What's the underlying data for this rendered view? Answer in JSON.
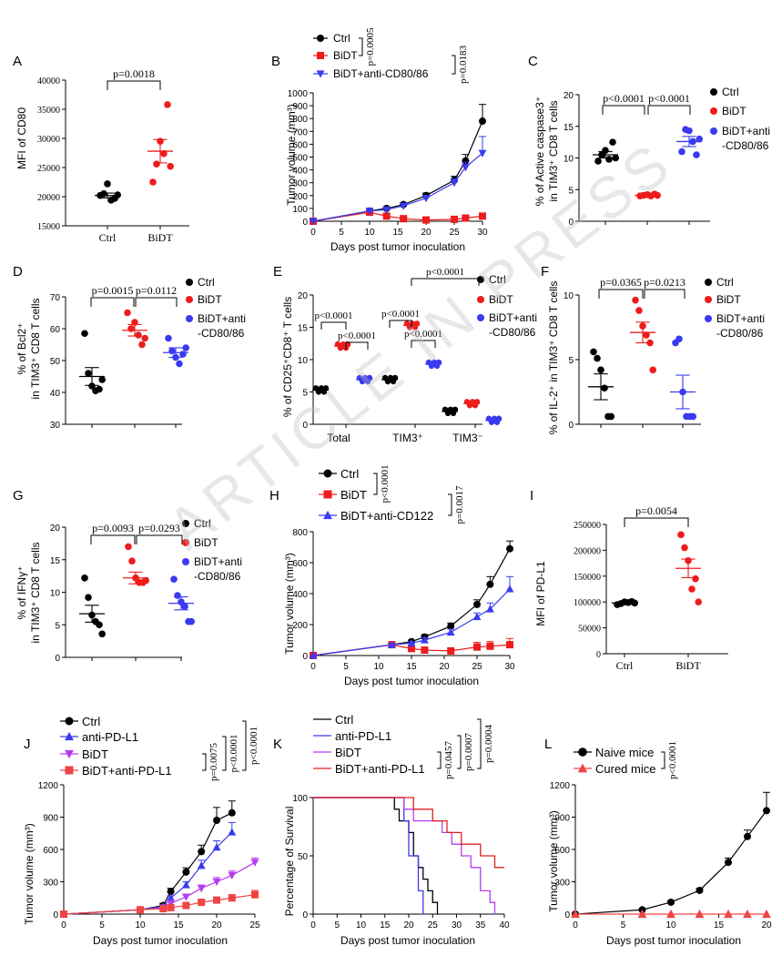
{
  "watermark": "ARTICLE IN PRESS",
  "colors": {
    "black": "#000000",
    "red": "#ee1c1c",
    "blue": "#3a3af0",
    "purple": "#b63cf0",
    "lightred": "#ef4444"
  },
  "chart_data": [
    {
      "panel": "A",
      "type": "scatter",
      "ylabel": "MFI of CD80",
      "ylim": [
        15000,
        40000
      ],
      "yticks": [
        15000,
        20000,
        25000,
        30000,
        35000,
        40000
      ],
      "categories": [
        "Ctrl",
        "BiDT"
      ],
      "points": [
        [
          20200,
          20500,
          22200,
          19400,
          19700,
          20300
        ],
        [
          22500,
          25600,
          29500,
          27400,
          35800,
          25200
        ]
      ],
      "means": [
        20200,
        27800
      ],
      "sems": [
        420,
        2000
      ],
      "annotations": [
        "p=0.0018"
      ]
    },
    {
      "panel": "B",
      "type": "line",
      "xlabel": "Days post tumor inoculation",
      "ylabel": "Tumor volume (mm³)",
      "xlim": [
        0,
        30
      ],
      "ylim": [
        0,
        1000
      ],
      "xticks": [
        0,
        5,
        10,
        15,
        20,
        25,
        30
      ],
      "yticks": [
        0,
        100,
        200,
        300,
        400,
        500,
        600,
        700,
        800,
        900,
        1000
      ],
      "series": [
        {
          "name": "Ctrl",
          "x": [
            0,
            10,
            13,
            16,
            20,
            25,
            27,
            30
          ],
          "y": [
            0,
            80,
            100,
            130,
            200,
            320,
            470,
            780
          ],
          "err": [
            0,
            10,
            12,
            15,
            20,
            30,
            50,
            130
          ]
        },
        {
          "name": "BiDT",
          "x": [
            0,
            10,
            13,
            16,
            20,
            25,
            27,
            30
          ],
          "y": [
            0,
            70,
            40,
            20,
            10,
            15,
            25,
            40
          ],
          "err": [
            0,
            8,
            8,
            5,
            5,
            5,
            8,
            10
          ]
        },
        {
          "name": "BiDT+anti-CD80/86",
          "x": [
            0,
            10,
            13,
            16,
            20,
            25,
            27,
            30
          ],
          "y": [
            0,
            80,
            90,
            120,
            180,
            300,
            420,
            530
          ],
          "err": [
            0,
            10,
            10,
            15,
            20,
            30,
            40,
            130
          ]
        }
      ],
      "annotations": [
        "p=0.0005",
        "p=0.0183"
      ]
    },
    {
      "panel": "C",
      "type": "scatter",
      "ylabel1": "% of Active caspase3⁺",
      "ylabel2": "in TIM3⁺ CD8 T cells",
      "ylim": [
        0,
        20
      ],
      "yticks": [
        0,
        5,
        10,
        15,
        20
      ],
      "legend": [
        "Ctrl",
        "BiDT",
        "BiDT+anti",
        "-CD80/86"
      ],
      "points": [
        [
          9.5,
          10.5,
          11.2,
          9.8,
          12.5,
          10.0
        ],
        [
          4.0,
          4.1,
          4.2,
          4.0,
          4.3,
          4.1
        ],
        [
          11.0,
          14.5,
          14.3,
          12.6,
          10.5,
          13.0
        ]
      ],
      "means": [
        10.5,
        4.1,
        12.6
      ],
      "sems": [
        0.5,
        0.1,
        0.8
      ],
      "annotations": [
        "p<0.0001",
        "p<0.0001"
      ]
    },
    {
      "panel": "D",
      "type": "scatter",
      "ylabel1": "% of Bcl2⁺",
      "ylabel2": "in TIM3⁺ CD8 T cells",
      "ylim": [
        30,
        70
      ],
      "yticks": [
        30,
        40,
        50,
        60,
        70
      ],
      "legend": [
        "Ctrl",
        "BiDT",
        "BiDT+anti",
        "-CD80/86"
      ],
      "points": [
        [
          58.5,
          46,
          42,
          40.5,
          41,
          44
        ],
        [
          65,
          60,
          62,
          58,
          55,
          57
        ],
        [
          57,
          53,
          51,
          49,
          52,
          54
        ]
      ],
      "means": [
        45,
        59.5,
        52.5
      ],
      "sems": [
        2.8,
        1.8,
        1.5
      ],
      "annotations": [
        "p=0.0015",
        "p=0.0112"
      ]
    },
    {
      "panel": "E",
      "type": "scatter",
      "ylabel": "% of CD25⁺CD8⁺ T cells",
      "ylim": [
        0,
        20
      ],
      "yticks": [
        0,
        5,
        10,
        15,
        20
      ],
      "categories": [
        "Total",
        "TIM3⁺",
        "TIM3⁻"
      ],
      "legend": [
        "Ctrl",
        "BiDT",
        "BiDT+anti",
        "-CD80/86"
      ],
      "groups": [
        [
          5.3,
          12.1,
          6.9
        ],
        [
          6.9,
          15.3,
          9.3
        ],
        [
          2.0,
          3.2,
          0.6
        ]
      ],
      "annotations": [
        "p<0.0001",
        "p<0.0001",
        "p<0.0001",
        "p<0.0001",
        "p<0.0001"
      ]
    },
    {
      "panel": "F",
      "type": "scatter",
      "ylabel1": "% of IL-2⁺ in TIM3⁺ CD8 T cells",
      "ylim": [
        0,
        10
      ],
      "yticks": [
        0,
        5,
        10
      ],
      "legend": [
        "Ctrl",
        "BiDT",
        "BiDT+anti",
        "-CD80/86"
      ],
      "points": [
        [
          5.6,
          5.1,
          4.2,
          2.8,
          0.6,
          0.6
        ],
        [
          9.6,
          8.8,
          7.6,
          6.9,
          6.3,
          4.2
        ],
        [
          6.3,
          6.6,
          2.5,
          0.6,
          0.6,
          0.6
        ]
      ],
      "means": [
        2.9,
        7.1,
        2.5
      ],
      "sems": [
        1.0,
        0.8,
        1.3
      ],
      "annotations": [
        "p=0.0365",
        "p=0.0213"
      ]
    },
    {
      "panel": "G",
      "type": "scatter",
      "ylabel1": "% of IFNγ⁺",
      "ylabel2": "in TIM3⁺ CD8 T cells",
      "ylim": [
        0,
        20
      ],
      "yticks": [
        0,
        5,
        10,
        15,
        20
      ],
      "legend": [
        "Ctrl",
        "BiDT",
        "BiDT+anti",
        "-CD80/86"
      ],
      "points": [
        [
          12.2,
          9.2,
          6.5,
          5.5,
          5.0,
          3.6
        ],
        [
          17.0,
          14.8,
          12.2,
          11.5,
          11.5,
          11.8
        ],
        [
          12.0,
          9.5,
          8.5,
          7.8,
          5.5,
          5.5
        ]
      ],
      "means": [
        6.7,
        12.2,
        8.3
      ],
      "sems": [
        1.3,
        0.9,
        1.0
      ],
      "annotations": [
        "p=0.0093",
        "p=0.0293"
      ]
    },
    {
      "panel": "H",
      "type": "line",
      "xlabel": "Days post tumor inoculation",
      "ylabel": "Tumor volume (mm³)",
      "xlim": [
        0,
        30
      ],
      "ylim": [
        0,
        800
      ],
      "xticks": [
        0,
        5,
        10,
        15,
        20,
        25,
        30
      ],
      "yticks": [
        0,
        200,
        400,
        600,
        800
      ],
      "series": [
        {
          "name": "Ctrl",
          "x": [
            0,
            12,
            15,
            17,
            21,
            25,
            27,
            30
          ],
          "y": [
            0,
            70,
            90,
            120,
            190,
            330,
            460,
            690
          ],
          "err": [
            0,
            10,
            10,
            15,
            20,
            30,
            50,
            50
          ]
        },
        {
          "name": "BiDT",
          "x": [
            0,
            12,
            15,
            17,
            21,
            25,
            27,
            30
          ],
          "y": [
            0,
            70,
            45,
            35,
            30,
            55,
            60,
            70
          ],
          "err": [
            0,
            10,
            10,
            10,
            10,
            30,
            30,
            40
          ]
        },
        {
          "name": "BiDT+anti-CD122",
          "x": [
            0,
            12,
            15,
            17,
            21,
            25,
            27,
            30
          ],
          "y": [
            0,
            70,
            80,
            100,
            150,
            250,
            300,
            430
          ],
          "err": [
            0,
            10,
            10,
            15,
            20,
            25,
            40,
            80
          ]
        }
      ],
      "annotations": [
        "p<0.0001",
        "p=0.0017"
      ]
    },
    {
      "panel": "I",
      "type": "scatter",
      "ylabel": "MFI of PD-L1",
      "ylim": [
        0,
        250000
      ],
      "yticks": [
        0,
        50000,
        100000,
        150000,
        200000,
        250000
      ],
      "categories": [
        "Ctrl",
        "BiDT"
      ],
      "points": [
        [
          95000,
          97000,
          100000,
          99000,
          101000,
          98000
        ],
        [
          230000,
          205000,
          180000,
          125000,
          145000,
          100000
        ]
      ],
      "means": [
        98000,
        165000
      ],
      "sems": [
        1500,
        18000
      ],
      "annotations": [
        "p=0.0054"
      ]
    },
    {
      "panel": "J",
      "type": "line",
      "xlabel": "Days post tumor inoculation",
      "ylabel": "Tumor volume (mm³)",
      "xlim": [
        0,
        25
      ],
      "ylim": [
        0,
        1200
      ],
      "xticks": [
        0,
        5,
        10,
        15,
        20,
        25
      ],
      "yticks": [
        0,
        300,
        600,
        900,
        1200
      ],
      "series": [
        {
          "name": "Ctrl",
          "x": [
            0,
            10,
            13,
            14,
            16,
            18,
            20,
            22
          ],
          "y": [
            0,
            40,
            80,
            210,
            390,
            580,
            870,
            940
          ],
          "err": [
            0,
            10,
            20,
            30,
            40,
            60,
            120,
            110
          ]
        },
        {
          "name": "anti-PD-L1",
          "x": [
            0,
            10,
            13,
            14,
            16,
            18,
            20,
            22
          ],
          "y": [
            0,
            40,
            70,
            150,
            270,
            450,
            620,
            760
          ],
          "err": [
            0,
            10,
            15,
            20,
            30,
            50,
            60,
            90
          ]
        },
        {
          "name": "BiDT",
          "x": [
            0,
            10,
            13,
            14,
            16,
            18,
            20,
            22,
            25
          ],
          "y": [
            0,
            40,
            60,
            100,
            160,
            240,
            300,
            360,
            480
          ],
          "err": [
            0,
            10,
            10,
            15,
            20,
            30,
            40,
            40,
            40
          ]
        },
        {
          "name": "BiDT+anti-PD-L1",
          "x": [
            0,
            10,
            13,
            14,
            16,
            18,
            20,
            22,
            25
          ],
          "y": [
            0,
            40,
            50,
            60,
            80,
            110,
            130,
            150,
            180
          ],
          "err": [
            0,
            10,
            10,
            10,
            10,
            15,
            20,
            30,
            40
          ]
        }
      ],
      "annotations": [
        "p=0.0075",
        "p<0.0001",
        "p<0.0001"
      ]
    },
    {
      "panel": "K",
      "type": "line",
      "xlabel": "Days post tumor inoculation",
      "ylabel": "Percentage of Survival",
      "xlim": [
        0,
        40
      ],
      "ylim": [
        0,
        100
      ],
      "xticks": [
        0,
        5,
        10,
        15,
        20,
        25,
        30,
        35,
        40
      ],
      "yticks": [
        0,
        50,
        100
      ],
      "series": [
        {
          "name": "Ctrl",
          "x": [
            0,
            16,
            17,
            18,
            20,
            21,
            22,
            23,
            24,
            25,
            26
          ],
          "y": [
            100,
            100,
            90,
            80,
            70,
            50,
            40,
            30,
            20,
            10,
            0
          ]
        },
        {
          "name": "anti-PD-L1",
          "x": [
            0,
            18,
            19,
            20,
            21,
            22,
            23
          ],
          "y": [
            100,
            100,
            80,
            50,
            50,
            20,
            0
          ]
        },
        {
          "name": "BiDT",
          "x": [
            0,
            18,
            19,
            21,
            23,
            25,
            27,
            29,
            31,
            33,
            35,
            37,
            38
          ],
          "y": [
            100,
            100,
            90,
            80,
            80,
            80,
            70,
            60,
            50,
            40,
            20,
            10,
            0
          ]
        },
        {
          "name": "BiDT+anti-PD-L1",
          "x": [
            0,
            20,
            21,
            25,
            28,
            31,
            35,
            38,
            40
          ],
          "y": [
            100,
            100,
            90,
            80,
            70,
            60,
            50,
            40,
            40
          ]
        }
      ],
      "annotations": [
        "p=0.0457",
        "p=0.0007",
        "p=0.0004"
      ]
    },
    {
      "panel": "L",
      "type": "line",
      "xlabel": "Days post tumor inoculation",
      "ylabel": "Tumor volume (mm³)",
      "xlim": [
        0,
        20
      ],
      "ylim": [
        0,
        1200
      ],
      "xticks": [
        0,
        5,
        10,
        15,
        20
      ],
      "yticks": [
        0,
        300,
        600,
        900,
        1200
      ],
      "series": [
        {
          "name": "Naive mice",
          "x": [
            0,
            7,
            10,
            13,
            16,
            18,
            20
          ],
          "y": [
            0,
            40,
            110,
            220,
            480,
            720,
            960
          ],
          "err": [
            0,
            10,
            10,
            20,
            40,
            60,
            170
          ]
        },
        {
          "name": "Cured mice",
          "x": [
            0,
            7,
            10,
            13,
            16,
            18,
            20
          ],
          "y": [
            0,
            0,
            0,
            0,
            0,
            0,
            0
          ]
        }
      ],
      "annotations": [
        "p<0.0001"
      ]
    }
  ]
}
